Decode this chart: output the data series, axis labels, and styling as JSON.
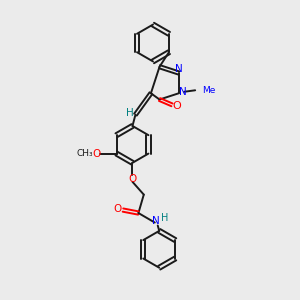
{
  "bg_color": "#ebebeb",
  "bond_color": "#1a1a1a",
  "N_color": "#0000ff",
  "O_color": "#ff0000",
  "H_color": "#008080",
  "figsize": [
    3.0,
    3.0
  ],
  "dpi": 100,
  "lw": 1.4,
  "ring_r": 0.62,
  "xlim": [
    0,
    10
  ],
  "ylim": [
    0,
    10
  ]
}
